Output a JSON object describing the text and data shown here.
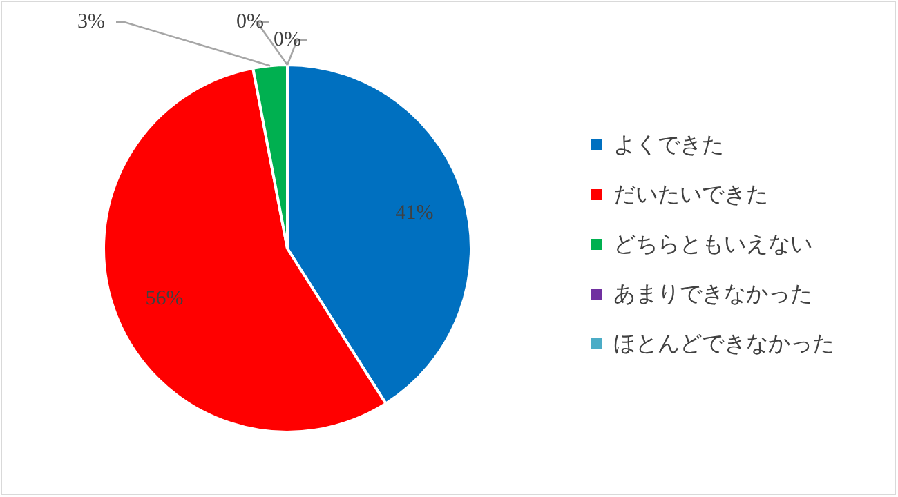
{
  "chart_data": {
    "type": "pie",
    "categories": [
      "よくできた",
      "だいたいできた",
      "どちらともいえない",
      "あまりできなかった",
      "ほとんどできなかった"
    ],
    "values": [
      41,
      56,
      3,
      0,
      0
    ],
    "colors": [
      "#0070c0",
      "#ff0000",
      "#00b050",
      "#7030a0",
      "#4bacc6"
    ],
    "value_labels": [
      "41%",
      "56%",
      "3%",
      "0%",
      "0%"
    ],
    "legend": "right"
  }
}
